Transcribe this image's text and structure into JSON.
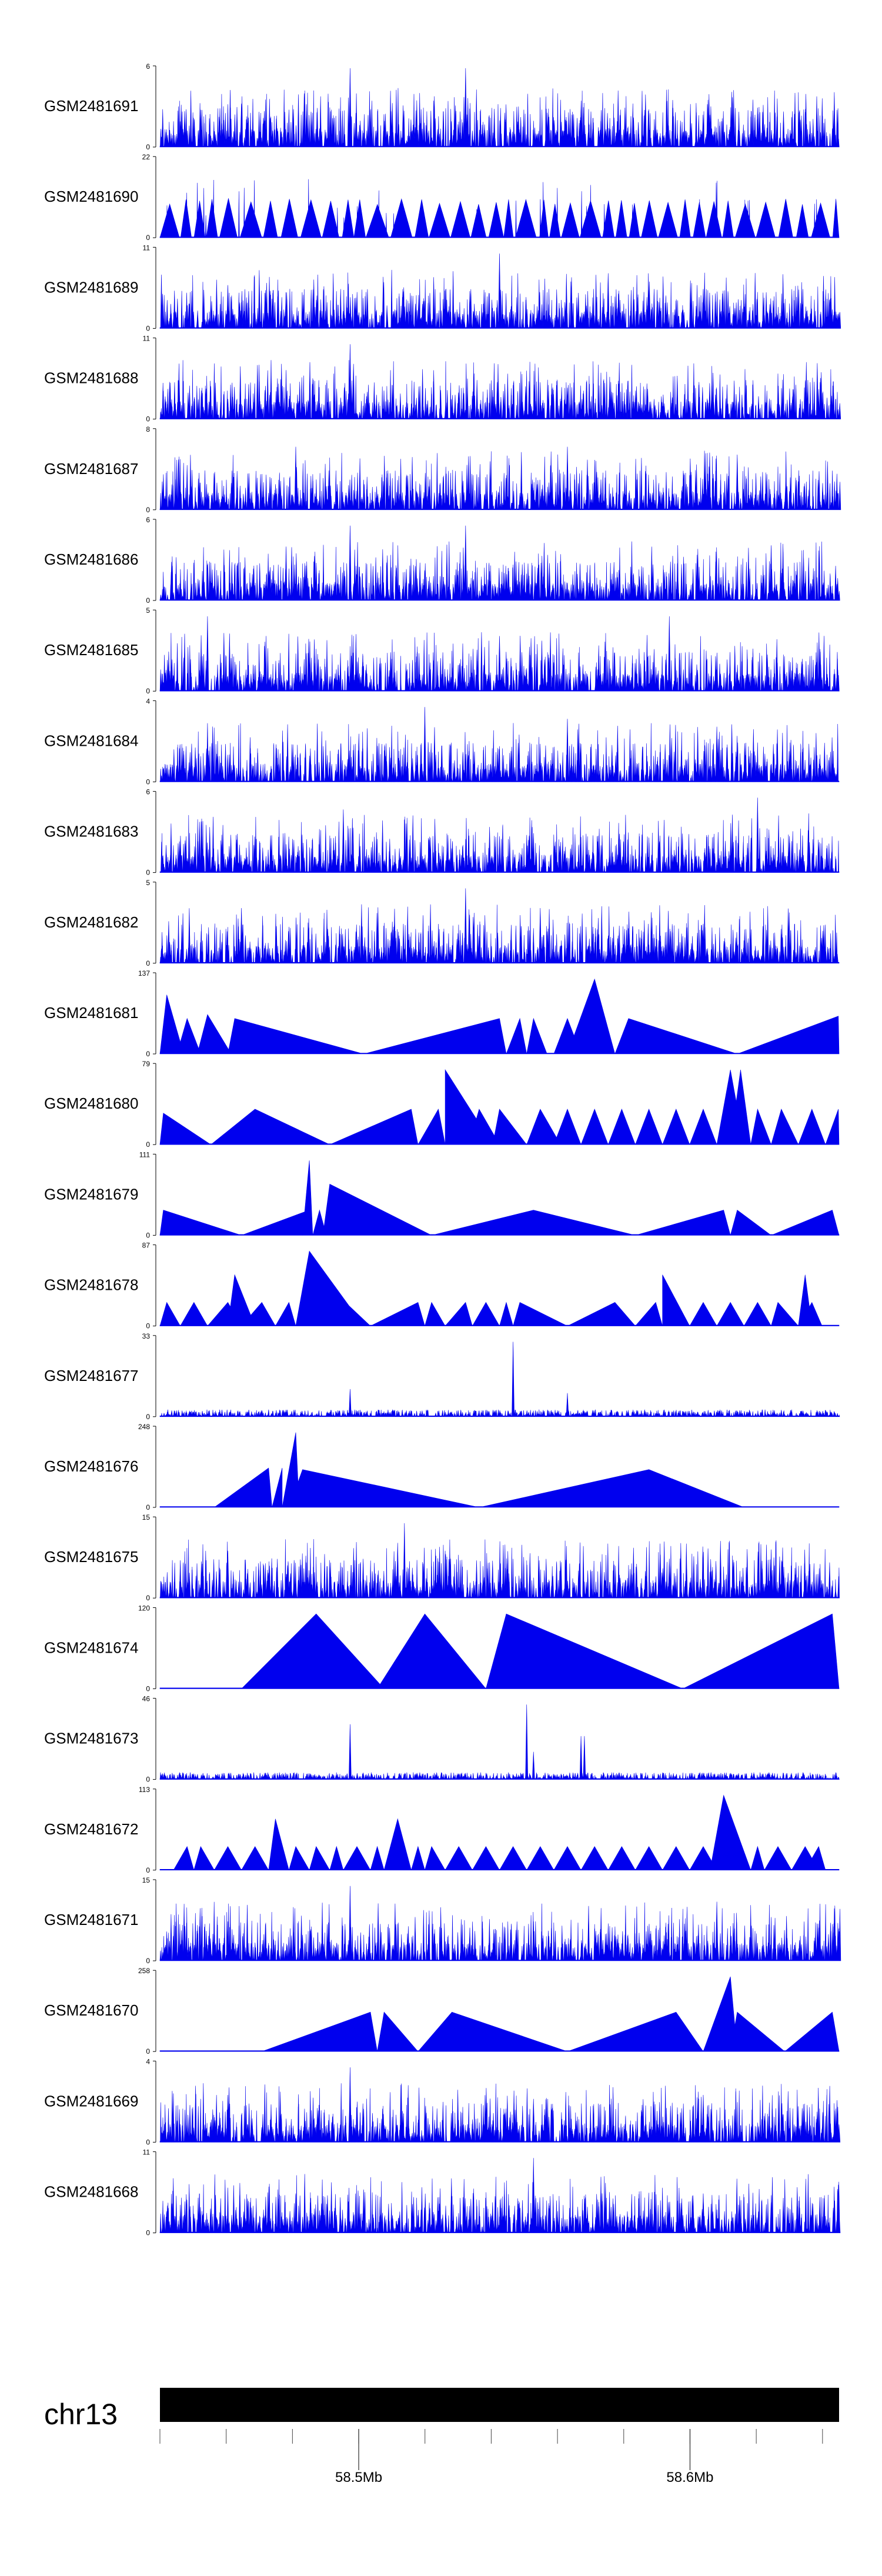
{
  "chart_data": {
    "type": "area",
    "title": "",
    "tracks": [
      {
        "name": "GSM2481691",
        "ymax": 6,
        "ymin": 0,
        "style": "spiky",
        "seed": 11,
        "peaks": [
          [
            0.28,
            1.0
          ],
          [
            0.45,
            1.0
          ],
          [
            0.12,
            0.55
          ],
          [
            0.62,
            0.5
          ],
          [
            0.88,
            0.5
          ]
        ]
      },
      {
        "name": "GSM2481690",
        "ymax": 22,
        "ymin": 0,
        "style": "triangles",
        "seed": 12,
        "peaks": [
          [
            0.19,
            0.95
          ],
          [
            0.45,
            0.85
          ],
          [
            0.9,
            0.95
          ]
        ]
      },
      {
        "name": "GSM2481689",
        "ymax": 11,
        "ymin": 0,
        "style": "spiky",
        "seed": 13,
        "peaks": [
          [
            0.5,
            0.95
          ],
          [
            0.66,
            0.7
          ],
          [
            0.1,
            0.55
          ],
          [
            0.8,
            0.5
          ]
        ]
      },
      {
        "name": "GSM2481688",
        "ymax": 11,
        "ymin": 0,
        "style": "spiky",
        "seed": 14,
        "peaks": [
          [
            0.28,
            0.95
          ],
          [
            0.285,
            0.7
          ],
          [
            0.6,
            0.4
          ]
        ]
      },
      {
        "name": "GSM2481687",
        "ymax": 8,
        "ymin": 0,
        "style": "spiky",
        "seed": 15,
        "peaks": [
          [
            0.2,
            0.8
          ],
          [
            0.6,
            0.8
          ],
          [
            0.85,
            0.7
          ]
        ]
      },
      {
        "name": "GSM2481686",
        "ymax": 6,
        "ymin": 0,
        "style": "spiky",
        "seed": 16,
        "peaks": [
          [
            0.28,
            0.95
          ],
          [
            0.45,
            0.95
          ],
          [
            0.9,
            0.7
          ]
        ]
      },
      {
        "name": "GSM2481685",
        "ymax": 5,
        "ymin": 0,
        "style": "spiky",
        "seed": 17,
        "peaks": [
          [
            0.07,
            0.95
          ],
          [
            0.5,
            0.7
          ],
          [
            0.75,
            0.95
          ]
        ]
      },
      {
        "name": "GSM2481684",
        "ymax": 4,
        "ymin": 0,
        "style": "spiky",
        "seed": 18,
        "peaks": [
          [
            0.39,
            0.95
          ],
          [
            0.6,
            0.8
          ],
          [
            0.82,
            0.7
          ]
        ]
      },
      {
        "name": "GSM2481683",
        "ymax": 6,
        "ymin": 0,
        "style": "spiky",
        "seed": 19,
        "peaks": [
          [
            0.27,
            0.8
          ],
          [
            0.88,
            0.95
          ],
          [
            0.55,
            0.5
          ]
        ]
      },
      {
        "name": "GSM2481682",
        "ymax": 5,
        "ymin": 0,
        "style": "spiky",
        "seed": 20,
        "peaks": [
          [
            0.45,
            0.95
          ],
          [
            0.12,
            0.7
          ],
          [
            0.56,
            0.7
          ],
          [
            0.8,
            0.5
          ]
        ]
      },
      {
        "name": "GSM2481681",
        "ymax": 137,
        "ymin": 0,
        "style": "bigtri",
        "tris": [
          [
            0.0,
            0.01,
            0.035,
            0.75
          ],
          [
            0.025,
            0.04,
            0.06,
            0.45
          ],
          [
            0.055,
            0.07,
            0.105,
            0.5
          ],
          [
            0.1,
            0.11,
            0.3,
            0.45
          ],
          [
            0.3,
            0.5,
            0.51,
            0.45
          ],
          [
            0.51,
            0.53,
            0.54,
            0.45
          ],
          [
            0.54,
            0.55,
            0.57,
            0.45
          ],
          [
            0.58,
            0.6,
            0.62,
            0.45
          ],
          [
            0.6,
            0.64,
            0.67,
            0.95
          ],
          [
            0.67,
            0.69,
            0.85,
            0.45
          ],
          [
            0.85,
            0.999,
            1.0,
            0.48
          ]
        ]
      },
      {
        "name": "GSM2481680",
        "ymax": 79,
        "ymin": 0,
        "style": "bigtri",
        "tris": [
          [
            0.0,
            0.005,
            0.075,
            0.4
          ],
          [
            0.075,
            0.14,
            0.25,
            0.45
          ],
          [
            0.25,
            0.37,
            0.38,
            0.45
          ],
          [
            0.38,
            0.41,
            0.42,
            0.45
          ],
          [
            0.42,
            0.42,
            0.49,
            0.95
          ],
          [
            0.455,
            0.47,
            0.5,
            0.45
          ],
          [
            0.49,
            0.5,
            0.54,
            0.45
          ],
          [
            0.54,
            0.56,
            0.59,
            0.45
          ],
          [
            0.58,
            0.6,
            0.62,
            0.45
          ],
          [
            0.62,
            0.64,
            0.66,
            0.45
          ],
          [
            0.66,
            0.68,
            0.7,
            0.45
          ],
          [
            0.7,
            0.72,
            0.74,
            0.45
          ],
          [
            0.74,
            0.76,
            0.78,
            0.45
          ],
          [
            0.78,
            0.8,
            0.82,
            0.45
          ],
          [
            0.82,
            0.84,
            0.86,
            0.95
          ],
          [
            0.84,
            0.855,
            0.87,
            0.95
          ],
          [
            0.87,
            0.88,
            0.9,
            0.45
          ],
          [
            0.9,
            0.915,
            0.94,
            0.45
          ],
          [
            0.94,
            0.96,
            0.98,
            0.45
          ],
          [
            0.98,
            0.999,
            1.0,
            0.45
          ]
        ]
      },
      {
        "name": "GSM2481679",
        "ymax": 111,
        "ymin": 0,
        "style": "bigtri",
        "tris": [
          [
            0.0,
            0.005,
            0.12,
            0.32
          ],
          [
            0.12,
            0.22,
            0.225,
            0.32
          ],
          [
            0.21,
            0.22,
            0.225,
            0.95
          ],
          [
            0.225,
            0.235,
            0.245,
            0.32
          ],
          [
            0.24,
            0.25,
            0.4,
            0.65
          ],
          [
            0.4,
            0.55,
            0.7,
            0.32
          ],
          [
            0.7,
            0.83,
            0.84,
            0.32
          ],
          [
            0.84,
            0.85,
            0.9,
            0.32
          ],
          [
            0.9,
            0.99,
            1.0,
            0.32
          ]
        ]
      },
      {
        "name": "GSM2481678",
        "ymax": 87,
        "ymin": 0,
        "style": "bigtri",
        "tris": [
          [
            0.0,
            0.01,
            0.03,
            0.3
          ],
          [
            0.03,
            0.05,
            0.07,
            0.3
          ],
          [
            0.07,
            0.1,
            0.12,
            0.3
          ],
          [
            0.1,
            0.11,
            0.14,
            0.65
          ],
          [
            0.12,
            0.15,
            0.17,
            0.3
          ],
          [
            0.17,
            0.19,
            0.2,
            0.3
          ],
          [
            0.2,
            0.21,
            0.22,
            0.3
          ],
          [
            0.2,
            0.22,
            0.3,
            0.95
          ],
          [
            0.22,
            0.23,
            0.31,
            0.65
          ],
          [
            0.31,
            0.38,
            0.39,
            0.3
          ],
          [
            0.39,
            0.4,
            0.42,
            0.3
          ],
          [
            0.42,
            0.45,
            0.46,
            0.3
          ],
          [
            0.46,
            0.48,
            0.5,
            0.3
          ],
          [
            0.5,
            0.51,
            0.52,
            0.3
          ],
          [
            0.52,
            0.53,
            0.6,
            0.3
          ],
          [
            0.6,
            0.67,
            0.7,
            0.3
          ],
          [
            0.7,
            0.73,
            0.74,
            0.3
          ],
          [
            0.74,
            0.74,
            0.78,
            0.65
          ],
          [
            0.78,
            0.8,
            0.82,
            0.3
          ],
          [
            0.82,
            0.84,
            0.86,
            0.3
          ],
          [
            0.86,
            0.88,
            0.9,
            0.3
          ],
          [
            0.9,
            0.91,
            0.94,
            0.3
          ],
          [
            0.94,
            0.95,
            0.96,
            0.65
          ],
          [
            0.94,
            0.96,
            0.975,
            0.3
          ]
        ]
      },
      {
        "name": "GSM2481677",
        "ymax": 33,
        "ymin": 0,
        "style": "low",
        "seed": 21,
        "peaks": [
          [
            0.52,
            0.95
          ],
          [
            0.52,
            0.75
          ],
          [
            0.28,
            0.35
          ],
          [
            0.6,
            0.3
          ]
        ]
      },
      {
        "name": "GSM2481676",
        "ymax": 248,
        "ymin": 0,
        "style": "bigtri",
        "tris": [
          [
            0.08,
            0.16,
            0.165,
            0.5
          ],
          [
            0.165,
            0.18,
            0.18,
            0.5
          ],
          [
            0.18,
            0.2,
            0.205,
            0.95
          ],
          [
            0.19,
            0.21,
            0.47,
            0.48
          ],
          [
            0.47,
            0.72,
            0.86,
            0.48
          ]
        ]
      },
      {
        "name": "GSM2481675",
        "ymax": 15,
        "ymin": 0,
        "style": "spiky",
        "seed": 22,
        "peaks": [
          [
            0.36,
            0.95
          ],
          [
            0.35,
            0.7
          ],
          [
            0.42,
            0.6
          ],
          [
            0.1,
            0.6
          ],
          [
            0.75,
            0.5
          ]
        ]
      },
      {
        "name": "GSM2481674",
        "ymax": 120,
        "ymin": 0,
        "style": "bigtri",
        "tris": [
          [
            0.12,
            0.23,
            0.33,
            0.95
          ],
          [
            0.32,
            0.39,
            0.48,
            0.95
          ],
          [
            0.48,
            0.51,
            0.77,
            0.95
          ],
          [
            0.77,
            0.99,
            1.0,
            0.95
          ]
        ]
      },
      {
        "name": "GSM2481673",
        "ymax": 46,
        "ymin": 0,
        "style": "low",
        "seed": 23,
        "peaks": [
          [
            0.54,
            0.95
          ],
          [
            0.28,
            0.7
          ],
          [
            0.62,
            0.55
          ],
          [
            0.625,
            0.55
          ],
          [
            0.55,
            0.35
          ]
        ]
      },
      {
        "name": "GSM2481672",
        "ymax": 113,
        "ymin": 0,
        "style": "bigtri",
        "tris": [
          [
            0.02,
            0.04,
            0.05,
            0.3
          ],
          [
            0.05,
            0.06,
            0.08,
            0.3
          ],
          [
            0.08,
            0.1,
            0.12,
            0.3
          ],
          [
            0.12,
            0.14,
            0.16,
            0.3
          ],
          [
            0.16,
            0.17,
            0.19,
            0.65
          ],
          [
            0.19,
            0.2,
            0.22,
            0.3
          ],
          [
            0.22,
            0.23,
            0.25,
            0.3
          ],
          [
            0.25,
            0.26,
            0.27,
            0.3
          ],
          [
            0.27,
            0.29,
            0.31,
            0.3
          ],
          [
            0.31,
            0.32,
            0.33,
            0.3
          ],
          [
            0.33,
            0.35,
            0.37,
            0.65
          ],
          [
            0.37,
            0.38,
            0.39,
            0.3
          ],
          [
            0.39,
            0.4,
            0.42,
            0.3
          ],
          [
            0.42,
            0.44,
            0.46,
            0.3
          ],
          [
            0.46,
            0.48,
            0.5,
            0.3
          ],
          [
            0.5,
            0.52,
            0.54,
            0.3
          ],
          [
            0.54,
            0.56,
            0.58,
            0.3
          ],
          [
            0.58,
            0.6,
            0.62,
            0.3
          ],
          [
            0.62,
            0.64,
            0.66,
            0.3
          ],
          [
            0.66,
            0.68,
            0.7,
            0.3
          ],
          [
            0.7,
            0.72,
            0.74,
            0.3
          ],
          [
            0.74,
            0.76,
            0.78,
            0.3
          ],
          [
            0.78,
            0.8,
            0.82,
            0.3
          ],
          [
            0.81,
            0.83,
            0.87,
            0.95
          ],
          [
            0.87,
            0.88,
            0.89,
            0.3
          ],
          [
            0.89,
            0.91,
            0.93,
            0.3
          ],
          [
            0.93,
            0.95,
            0.97,
            0.3
          ],
          [
            0.95,
            0.97,
            0.98,
            0.3
          ]
        ]
      },
      {
        "name": "GSM2481671",
        "ymax": 15,
        "ymin": 0,
        "style": "spiky",
        "seed": 24,
        "peaks": [
          [
            0.28,
            0.95
          ],
          [
            0.82,
            0.75
          ],
          [
            0.55,
            0.5
          ],
          [
            0.1,
            0.5
          ]
        ]
      },
      {
        "name": "GSM2481670",
        "ymax": 258,
        "ymin": 0,
        "style": "bigtri",
        "tris": [
          [
            0.15,
            0.31,
            0.32,
            0.5
          ],
          [
            0.32,
            0.33,
            0.38,
            0.5
          ],
          [
            0.38,
            0.43,
            0.6,
            0.5
          ],
          [
            0.6,
            0.76,
            0.8,
            0.5
          ],
          [
            0.8,
            0.84,
            0.85,
            0.95
          ],
          [
            0.84,
            0.85,
            0.92,
            0.5
          ],
          [
            0.92,
            0.99,
            1.0,
            0.5
          ]
        ]
      },
      {
        "name": "GSM2481669",
        "ymax": 4,
        "ymin": 0,
        "style": "spiky",
        "seed": 25,
        "peaks": [
          [
            0.28,
            0.95
          ],
          [
            0.1,
            0.6
          ],
          [
            0.55,
            0.55
          ],
          [
            0.8,
            0.6
          ]
        ]
      },
      {
        "name": "GSM2481668",
        "ymax": 11,
        "ymin": 0,
        "style": "spiky",
        "seed": 26,
        "peaks": [
          [
            0.55,
            0.95
          ],
          [
            0.3,
            0.55
          ],
          [
            0.8,
            0.5
          ]
        ]
      }
    ],
    "chromosome": "chr13",
    "x_axis": {
      "unit": "Mb",
      "range": [
        58.44,
        58.645
      ],
      "minor_ticks": [
        58.44,
        58.46,
        58.48,
        58.5,
        58.52,
        58.54,
        58.56,
        58.58,
        58.6,
        58.62,
        58.64
      ],
      "labeled_ticks": [
        {
          "value": 58.5,
          "label": "58.5Mb"
        },
        {
          "value": 58.6,
          "label": "58.6Mb"
        }
      ]
    },
    "colors": {
      "signal": "#0000ee",
      "axis": "#000000",
      "ideogram": "#000000"
    }
  }
}
